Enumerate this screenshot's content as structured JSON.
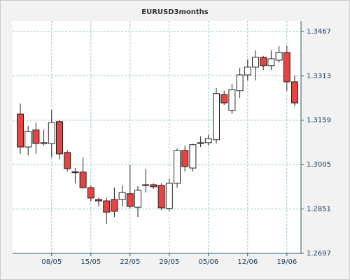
{
  "chart_data": {
    "type": "candlestick",
    "title": "EURUSD3months",
    "categories": [
      null,
      null,
      null,
      null,
      "08/05",
      null,
      null,
      null,
      null,
      "15/05",
      null,
      null,
      null,
      null,
      "22/05",
      null,
      null,
      null,
      null,
      "29/05",
      null,
      null,
      null,
      null,
      "05/06",
      null,
      null,
      null,
      null,
      "12/06",
      null,
      null,
      null,
      null,
      "19/06",
      null
    ],
    "series": [
      {
        "open": [
          1.318,
          1.3066,
          1.3125,
          1.3078,
          1.3078,
          1.3154,
          1.3047,
          1.298,
          1.2979,
          1.2925,
          1.2884,
          1.2879,
          1.2884,
          1.2884,
          1.2904,
          1.2857,
          1.2935,
          1.2935,
          1.2933,
          1.2853,
          1.294,
          1.3054,
          1.2993,
          1.3078,
          1.3081,
          1.3091,
          1.3248,
          1.3193,
          1.3261,
          1.3316,
          1.3343,
          1.3377,
          1.3348,
          1.3367,
          1.3394,
          1.3292
        ],
        "high": [
          1.3217,
          1.3139,
          1.3151,
          1.3127,
          1.3195,
          1.3159,
          1.3054,
          1.2993,
          1.303,
          1.2933,
          1.2891,
          1.2891,
          1.2925,
          1.2933,
          1.3003,
          1.293,
          1.2989,
          1.294,
          1.294,
          1.2957,
          1.3061,
          1.3071,
          1.3078,
          1.3103,
          1.3108,
          1.327,
          1.3261,
          1.3285,
          1.3341,
          1.337,
          1.3401,
          1.3382,
          1.3401,
          1.3416,
          1.3418,
          1.3314
        ],
        "low": [
          1.3042,
          1.3037,
          1.3042,
          1.3071,
          1.303,
          1.3023,
          1.2981,
          1.294,
          1.2921,
          1.2877,
          1.286,
          1.2799,
          1.2823,
          1.286,
          1.2853,
          1.2823,
          1.2908,
          1.2921,
          1.2848,
          1.2843,
          1.2925,
          1.2981,
          1.2981,
          1.3066,
          1.3071,
          1.3078,
          1.3212,
          1.318,
          1.3236,
          1.3297,
          1.3297,
          1.3333,
          1.3333,
          1.3358,
          1.3261,
          1.3207
        ],
        "close": [
          1.3066,
          1.312,
          1.3078,
          1.3081,
          1.3151,
          1.3042,
          1.2991,
          1.2977,
          1.2925,
          1.2889,
          1.2879,
          1.284,
          1.2843,
          1.2908,
          1.286,
          1.2916,
          1.2933,
          1.2928,
          1.2855,
          1.294,
          1.3054,
          1.2998,
          1.3074,
          1.3081,
          1.3095,
          1.3251,
          1.3219,
          1.3265,
          1.3316,
          1.3343,
          1.3377,
          1.3348,
          1.3372,
          1.3394,
          1.3292,
          1.3219
        ]
      }
    ],
    "up_color": "#ffffff",
    "down_color": "#e84343",
    "ylim": [
      1.2697,
      1.3503
    ],
    "yticks": [
      1.2697,
      1.2851,
      1.3005,
      1.3159,
      1.3313,
      1.3467
    ],
    "grid": true
  }
}
